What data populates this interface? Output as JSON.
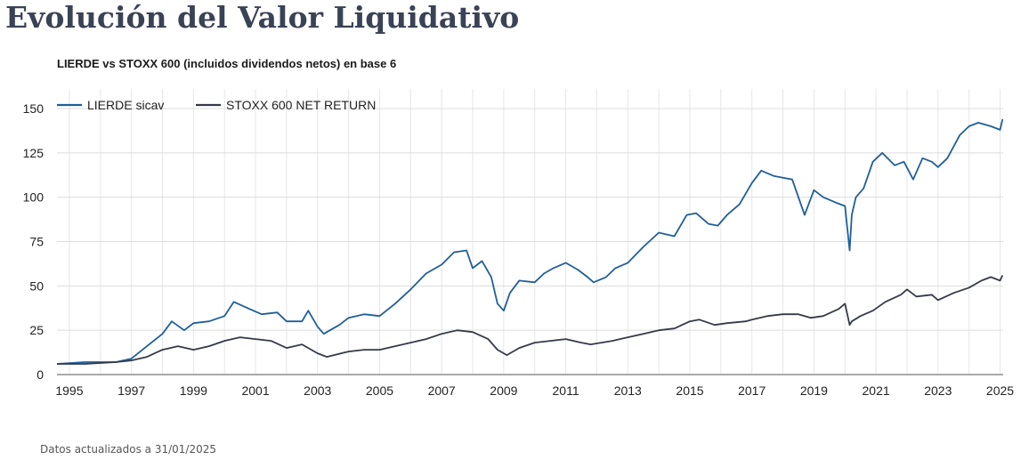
{
  "page": {
    "title": "Evolución del Valor Liquidativo",
    "footnote": "Datos actualizados a 31/01/2025"
  },
  "chart_data": {
    "type": "line",
    "title": "LIERDE vs STOXX 600 (incluidos dividendos netos) en base 6",
    "xlabel": "",
    "ylabel": "",
    "xlim": [
      1994.6,
      2025.1
    ],
    "ylim": [
      0,
      150
    ],
    "yticks": [
      0,
      25,
      50,
      75,
      100,
      125,
      150
    ],
    "xticks": [
      "1995",
      "1997",
      "1999",
      "2001",
      "2003",
      "2005",
      "2007",
      "2009",
      "2011",
      "2013",
      "2015",
      "2017",
      "2019",
      "2021",
      "2023",
      "2025"
    ],
    "legend_position": "top-left",
    "grid": true,
    "series": [
      {
        "name": "LIERDE sicav",
        "color": "#1f5f99",
        "x": [
          1994.6,
          1995.5,
          1996.5,
          1997.0,
          1997.5,
          1998.0,
          1998.3,
          1998.7,
          1999.0,
          1999.5,
          2000.0,
          2000.3,
          2000.8,
          2001.2,
          2001.7,
          2002.0,
          2002.5,
          2002.7,
          2003.0,
          2003.2,
          2003.7,
          2004.0,
          2004.5,
          2005.0,
          2005.5,
          2006.0,
          2006.5,
          2007.0,
          2007.4,
          2007.8,
          2008.0,
          2008.3,
          2008.6,
          2008.8,
          2009.0,
          2009.2,
          2009.5,
          2010.0,
          2010.3,
          2010.6,
          2011.0,
          2011.4,
          2011.7,
          2011.9,
          2012.3,
          2012.6,
          2013.0,
          2013.5,
          2014.0,
          2014.5,
          2014.9,
          2015.2,
          2015.6,
          2015.9,
          2016.2,
          2016.6,
          2017.0,
          2017.3,
          2017.7,
          2018.0,
          2018.3,
          2018.7,
          2019.0,
          2019.3,
          2019.7,
          2020.0,
          2020.15,
          2020.22,
          2020.35,
          2020.6,
          2020.9,
          2021.2,
          2021.6,
          2021.9,
          2022.2,
          2022.5,
          2022.8,
          2023.0,
          2023.3,
          2023.7,
          2024.0,
          2024.3,
          2024.7,
          2025.0,
          2025.08
        ],
        "values": [
          6,
          7,
          7,
          9,
          16,
          23,
          30,
          25,
          29,
          30,
          33,
          41,
          37,
          34,
          35,
          30,
          30,
          36,
          27,
          23,
          28,
          32,
          34,
          33,
          40,
          48,
          57,
          62,
          69,
          70,
          60,
          64,
          55,
          40,
          36,
          46,
          53,
          52,
          57,
          60,
          63,
          59,
          55,
          52,
          55,
          60,
          63,
          72,
          80,
          78,
          90,
          91,
          85,
          84,
          90,
          96,
          108,
          115,
          112,
          111,
          110,
          90,
          104,
          100,
          97,
          95,
          70,
          90,
          100,
          105,
          120,
          125,
          118,
          120,
          110,
          122,
          120,
          117,
          122,
          135,
          140,
          142,
          140,
          138,
          144
        ]
      },
      {
        "name": "STOXX 600 NET RETURN",
        "color": "#353a49",
        "x": [
          1994.6,
          1995.5,
          1996.5,
          1997.0,
          1997.5,
          1998.0,
          1998.5,
          1999.0,
          1999.5,
          2000.0,
          2000.5,
          2001.0,
          2001.5,
          2002.0,
          2002.5,
          2003.0,
          2003.3,
          2004.0,
          2004.5,
          2005.0,
          2005.5,
          2006.0,
          2006.5,
          2007.0,
          2007.5,
          2008.0,
          2008.5,
          2008.8,
          2009.1,
          2009.5,
          2010.0,
          2010.5,
          2011.0,
          2011.5,
          2011.8,
          2012.5,
          2013.0,
          2013.5,
          2014.0,
          2014.5,
          2015.0,
          2015.3,
          2015.8,
          2016.2,
          2016.8,
          2017.0,
          2017.5,
          2018.0,
          2018.5,
          2018.9,
          2019.3,
          2019.8,
          2020.0,
          2020.15,
          2020.22,
          2020.5,
          2020.9,
          2021.3,
          2021.8,
          2022.0,
          2022.3,
          2022.8,
          2023.0,
          2023.5,
          2024.0,
          2024.4,
          2024.7,
          2025.0,
          2025.08
        ],
        "values": [
          6,
          6,
          7,
          8,
          10,
          14,
          16,
          14,
          16,
          19,
          21,
          20,
          19,
          15,
          17,
          12,
          10,
          13,
          14,
          14,
          16,
          18,
          20,
          23,
          25,
          24,
          20,
          14,
          11,
          15,
          18,
          19,
          20,
          18,
          17,
          19,
          21,
          23,
          25,
          26,
          30,
          31,
          28,
          29,
          30,
          31,
          33,
          34,
          34,
          32,
          33,
          37,
          40,
          28,
          30,
          33,
          36,
          41,
          45,
          48,
          44,
          45,
          42,
          46,
          49,
          53,
          55,
          53,
          56
        ]
      }
    ]
  }
}
